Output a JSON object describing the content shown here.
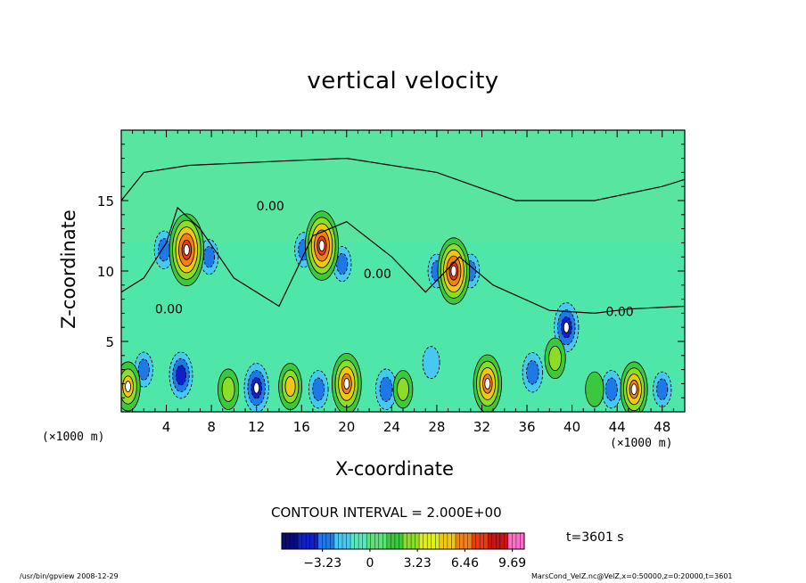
{
  "chart_data": {
    "type": "heatmap",
    "title": "vertical velocity",
    "xlabel": "X-coordinate",
    "ylabel": "Z-coordinate",
    "x_unit": "(×1000 m)",
    "x_ticks": [
      4,
      8,
      12,
      16,
      20,
      24,
      28,
      32,
      36,
      40,
      44,
      48
    ],
    "y_ticks": [
      5,
      10,
      15
    ],
    "xlim": [
      0,
      50
    ],
    "ylim": [
      0,
      20
    ],
    "contour_interval": "CONTOUR INTERVAL = 2.000E+00",
    "contour_label": "0.00",
    "time": "t=3601 s",
    "colorbar": {
      "ticks": [
        -3.23,
        0,
        3.23,
        6.46,
        9.69
      ],
      "tick_labels": [
        "−3.23",
        "0",
        "3.23",
        "6.46",
        "9.69"
      ],
      "range": [
        -6.0,
        10.5
      ],
      "colors": [
        "#0a0a78",
        "#1020c8",
        "#1e78e6",
        "#46c8f0",
        "#5ae6be",
        "#5fe07a",
        "#3cc83c",
        "#8cdc28",
        "#dcf01e",
        "#f0c814",
        "#f08214",
        "#e63c14",
        "#c81414",
        "#ff6ec8"
      ]
    },
    "features": {
      "updrafts": [
        {
          "x": 5.8,
          "z": 11.5,
          "peak": 9.5
        },
        {
          "x": 17.8,
          "z": 11.8,
          "peak": 9.0
        },
        {
          "x": 29.5,
          "z": 10.0,
          "peak": 8.5
        },
        {
          "x": 20.0,
          "z": 2.0,
          "peak": 7.5
        },
        {
          "x": 32.5,
          "z": 2.0,
          "peak": 7.0
        },
        {
          "x": 45.5,
          "z": 1.6,
          "peak": 6.5
        },
        {
          "x": 0.6,
          "z": 1.8,
          "peak": 5.5
        },
        {
          "x": 15.0,
          "z": 1.8,
          "peak": 5.0
        },
        {
          "x": 9.5,
          "z": 1.6,
          "peak": 4.0
        },
        {
          "x": 25.0,
          "z": 1.6,
          "peak": 3.5
        },
        {
          "x": 38.5,
          "z": 3.8,
          "peak": 4.0
        },
        {
          "x": 42.0,
          "z": 1.6,
          "peak": 3.0
        }
      ],
      "downdrafts": [
        {
          "x": 12.0,
          "z": 1.7,
          "peak": -5.5
        },
        {
          "x": 5.3,
          "z": 2.6,
          "peak": -5.0
        },
        {
          "x": 39.5,
          "z": 6.0,
          "peak": -5.5
        },
        {
          "x": 3.8,
          "z": 11.5,
          "peak": -3.5
        },
        {
          "x": 7.8,
          "z": 11.0,
          "peak": -3.0
        },
        {
          "x": 16.2,
          "z": 11.5,
          "peak": -3.0
        },
        {
          "x": 19.6,
          "z": 10.5,
          "peak": -3.0
        },
        {
          "x": 28.0,
          "z": 10.0,
          "peak": -2.8
        },
        {
          "x": 31.0,
          "z": 10.0,
          "peak": -2.8
        },
        {
          "x": 23.5,
          "z": 1.6,
          "peak": -4.0
        },
        {
          "x": 17.5,
          "z": 1.6,
          "peak": -3.5
        },
        {
          "x": 36.5,
          "z": 2.8,
          "peak": -3.8
        },
        {
          "x": 43.5,
          "z": 1.6,
          "peak": -3.5
        },
        {
          "x": 48.0,
          "z": 1.6,
          "peak": -3.0
        },
        {
          "x": 2.0,
          "z": 3.0,
          "peak": -3.0
        },
        {
          "x": 27.5,
          "z": 3.5,
          "peak": -2.5
        }
      ]
    }
  },
  "footer": {
    "left": "/usr/bin/gpview   2008-12-29",
    "right": "MarsCond_VelZ.nc@VelZ,x=0:50000,z=0:20000,t=3601"
  }
}
